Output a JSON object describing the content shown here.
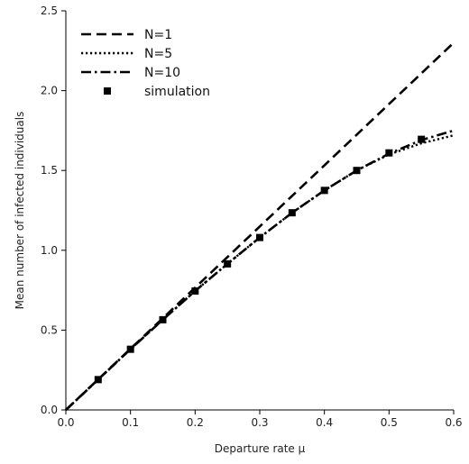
{
  "chart_data": {
    "type": "line",
    "title": "",
    "xlabel": "Departure rate μ",
    "ylabel": "Mean number of infected individuals",
    "xlim": [
      0.0,
      0.6
    ],
    "ylim": [
      0.0,
      2.5
    ],
    "xticks": [
      "0.0",
      "0.1",
      "0.2",
      "0.3",
      "0.4",
      "0.5",
      "0.6"
    ],
    "yticks": [
      "0.0",
      "0.5",
      "1.0",
      "1.5",
      "2.0",
      "2.5"
    ],
    "grid": false,
    "legend_position": "top-left",
    "series": [
      {
        "name": "N=1",
        "style": "dashed",
        "x": [
          0.0,
          0.1,
          0.2,
          0.3,
          0.4,
          0.5,
          0.6
        ],
        "y": [
          0.0,
          0.383,
          0.766,
          1.149,
          1.532,
          1.916,
          2.3
        ]
      },
      {
        "name": "N=5",
        "style": "dotted",
        "x": [
          0.0,
          0.05,
          0.1,
          0.15,
          0.2,
          0.25,
          0.3,
          0.35,
          0.4,
          0.45,
          0.5,
          0.55,
          0.6
        ],
        "y": [
          0.0,
          0.19,
          0.38,
          0.565,
          0.745,
          0.915,
          1.08,
          1.235,
          1.375,
          1.5,
          1.6,
          1.67,
          1.72
        ]
      },
      {
        "name": "N=10",
        "style": "dashdot",
        "x": [
          0.0,
          0.05,
          0.1,
          0.15,
          0.2,
          0.25,
          0.3,
          0.35,
          0.4,
          0.45,
          0.5,
          0.55,
          0.6
        ],
        "y": [
          0.0,
          0.19,
          0.38,
          0.565,
          0.745,
          0.915,
          1.08,
          1.235,
          1.375,
          1.5,
          1.605,
          1.69,
          1.75
        ]
      },
      {
        "name": "simulation",
        "style": "markers",
        "x": [
          0.05,
          0.1,
          0.15,
          0.2,
          0.25,
          0.3,
          0.35,
          0.4,
          0.45,
          0.5,
          0.55
        ],
        "y": [
          0.19,
          0.38,
          0.565,
          0.745,
          0.915,
          1.08,
          1.235,
          1.375,
          1.5,
          1.61,
          1.695
        ]
      }
    ]
  }
}
